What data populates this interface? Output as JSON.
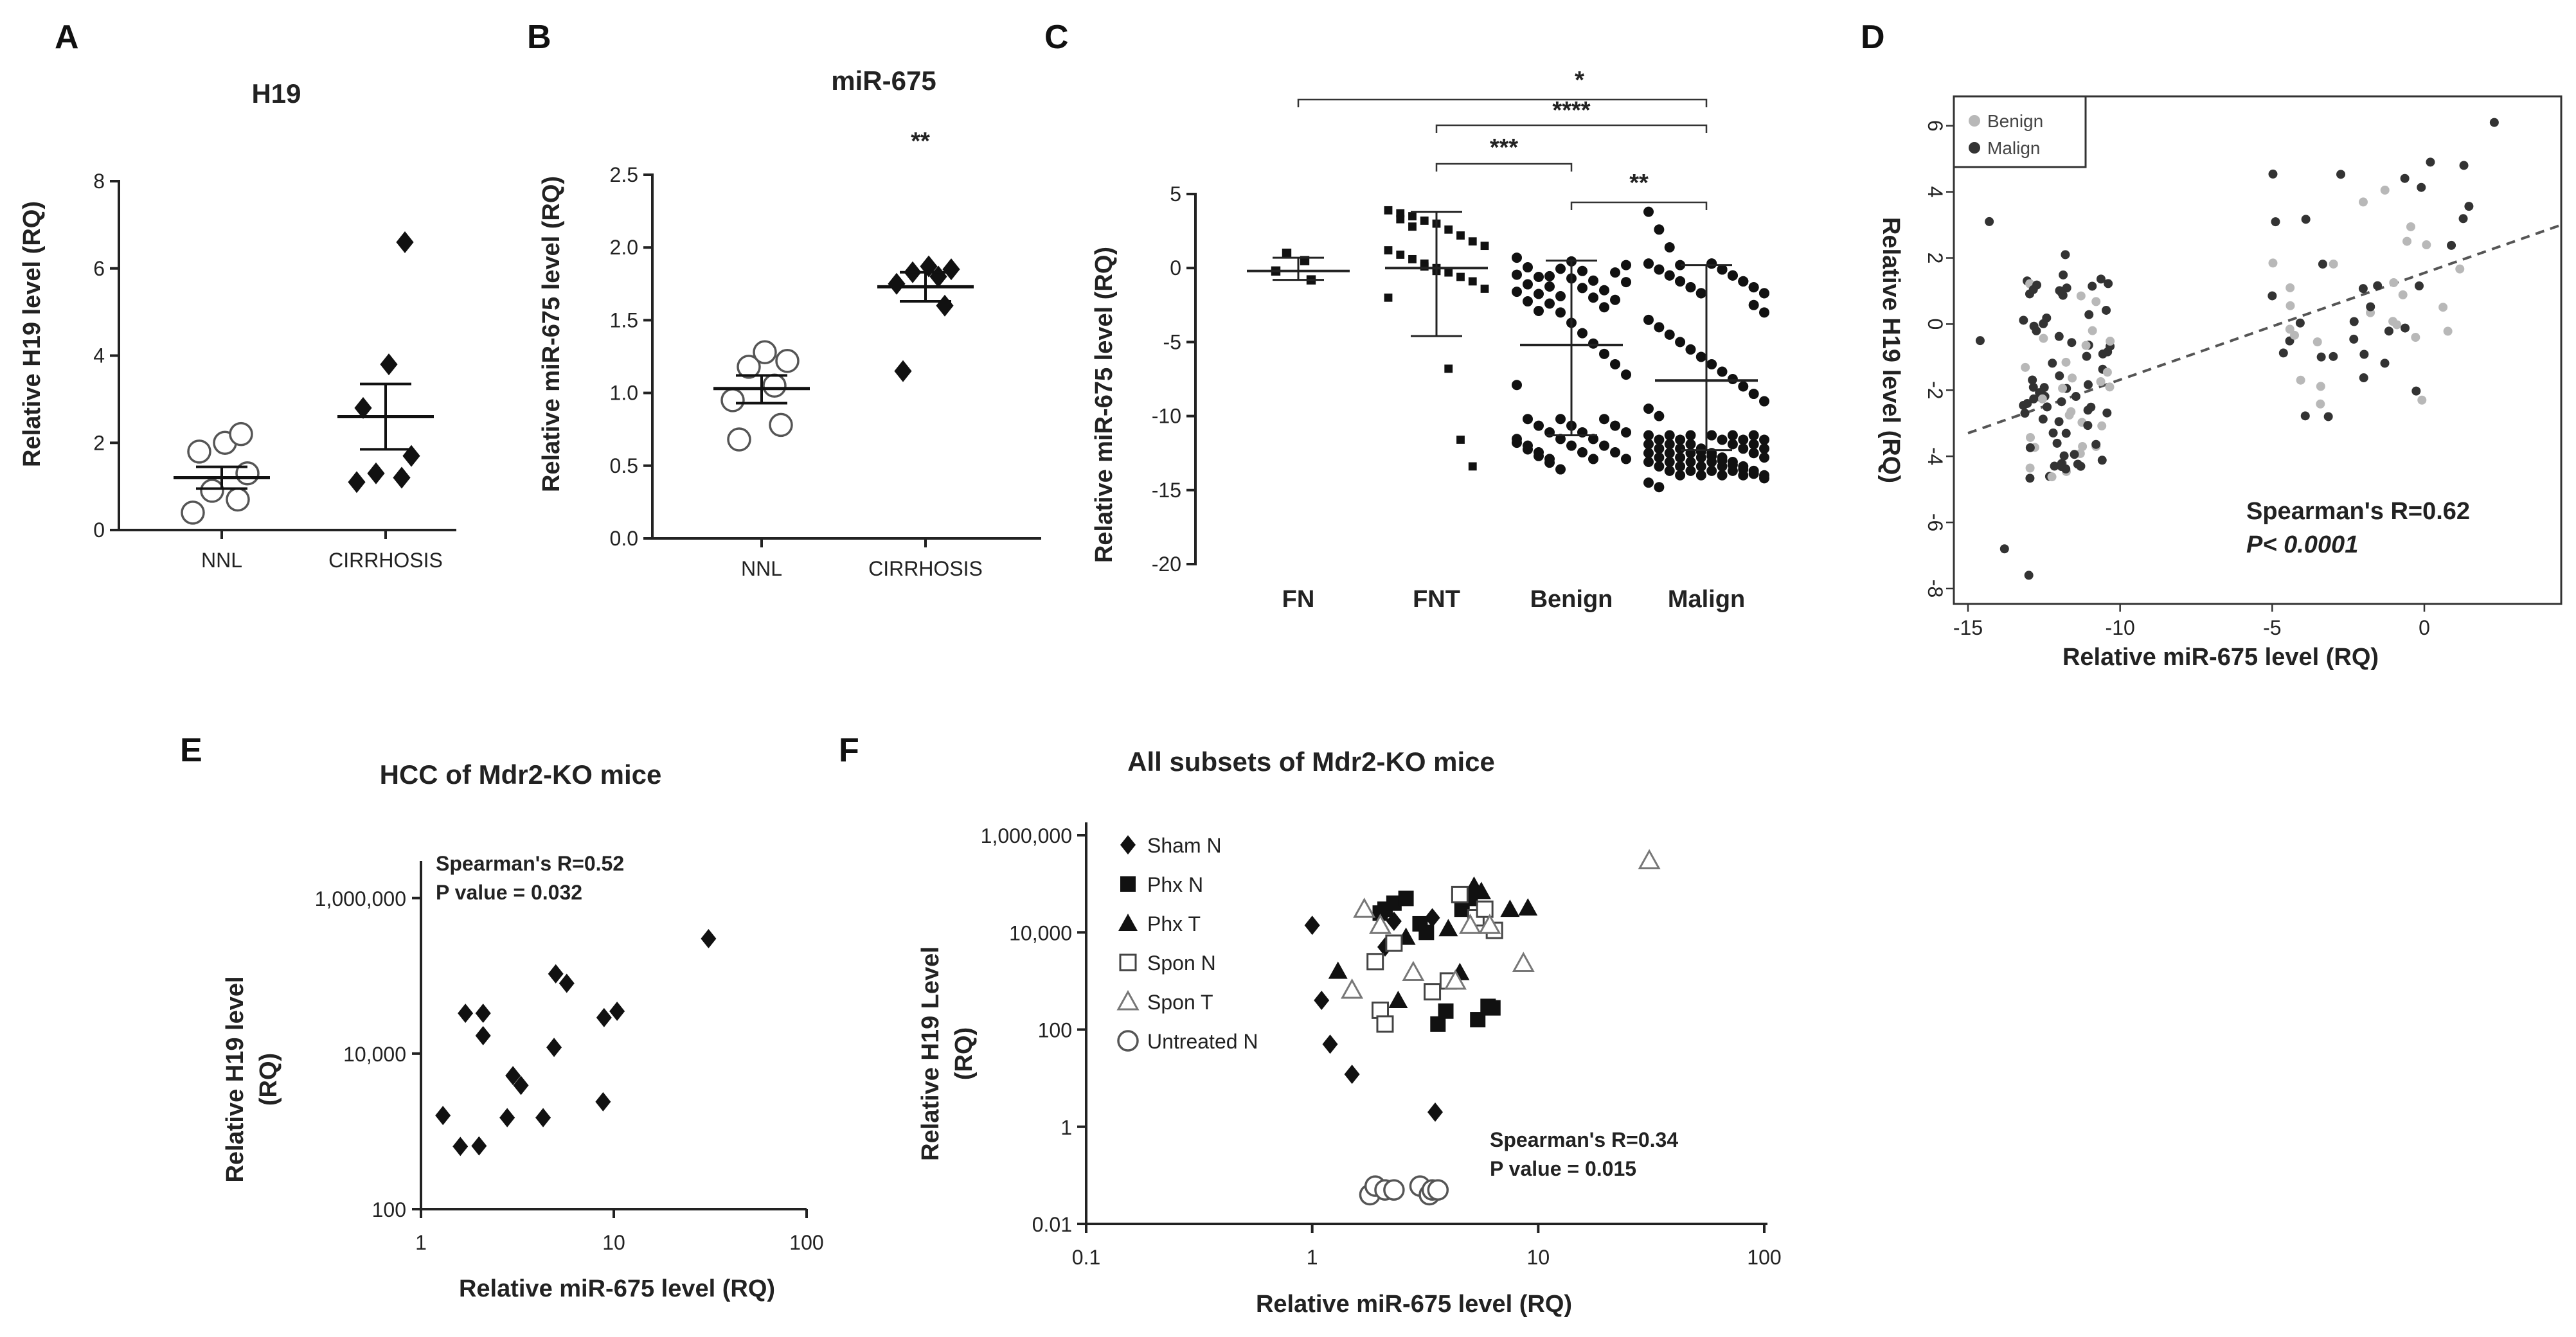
{
  "panels": {
    "A": "A",
    "B": "B",
    "C": "C",
    "D": "D",
    "E": "E",
    "F": "F"
  },
  "chart_data": [
    {
      "panel": "A",
      "type": "scatter",
      "title": "H19",
      "ylabel": "Relative H19 level (RQ)",
      "xlabel": "",
      "ylim": [
        0,
        8
      ],
      "yticks": [
        "0",
        "2",
        "4",
        "6",
        "8"
      ],
      "categories": [
        "NNL",
        "CIRRHOSIS"
      ],
      "groups": [
        {
          "name": "NNL",
          "marker": "open-circle",
          "values": [
            0.4,
            0.7,
            0.9,
            1.3,
            1.8,
            2.0,
            2.2
          ],
          "mean": 1.2,
          "sem_low": 0.95,
          "sem_high": 1.45
        },
        {
          "name": "CIRRHOSIS",
          "marker": "diamond",
          "values": [
            1.1,
            1.2,
            1.3,
            1.7,
            2.8,
            3.8,
            6.6
          ],
          "mean": 2.6,
          "sem_low": 1.85,
          "sem_high": 3.35
        }
      ]
    },
    {
      "panel": "B",
      "type": "scatter",
      "title": "miR-675",
      "ylabel": "Relative miR-675 level (RQ)",
      "xlabel": "",
      "ylim": [
        0,
        2.5
      ],
      "yticks": [
        "0.0",
        "0.5",
        "1.0",
        "1.5",
        "2.0",
        "2.5"
      ],
      "categories": [
        "NNL",
        "CIRRHOSIS"
      ],
      "annotation": "**",
      "groups": [
        {
          "name": "NNL",
          "marker": "open-circle",
          "values": [
            0.68,
            0.78,
            0.95,
            1.05,
            1.18,
            1.22,
            1.28
          ],
          "mean": 1.03,
          "sem_low": 0.93,
          "sem_high": 1.12
        },
        {
          "name": "CIRRHOSIS",
          "marker": "diamond",
          "values": [
            1.15,
            1.6,
            1.75,
            1.8,
            1.83,
            1.85,
            1.87
          ],
          "mean": 1.73,
          "sem_low": 1.63,
          "sem_high": 1.83
        }
      ]
    },
    {
      "panel": "C",
      "type": "scatter",
      "title": "",
      "ylabel": "Relative miR-675 level (RQ)",
      "xlabel": "",
      "ylim": [
        -20,
        5
      ],
      "yticks": [
        "5",
        "0",
        "-5",
        "-10",
        "-15",
        "-20"
      ],
      "categories": [
        "FN",
        "FNT",
        "Benign",
        "Malign"
      ],
      "groups": [
        {
          "name": "FN",
          "n": 4,
          "mean": -0.2,
          "low": -0.8,
          "high": 0.7
        },
        {
          "name": "FNT",
          "n": 26,
          "mean": 0.0,
          "low": -4.6,
          "high": 3.8
        },
        {
          "name": "Benign",
          "n": 60,
          "mean": -5.2,
          "low": -11.3,
          "high": 0.5
        },
        {
          "name": "Malign",
          "n": 110,
          "mean": -7.6,
          "low": -12.3,
          "high": 0.2
        }
      ],
      "significance": [
        {
          "from": "FN",
          "to": "Malign",
          "label": "*"
        },
        {
          "from": "FNT",
          "to": "Malign",
          "label": "****"
        },
        {
          "from": "FNT",
          "to": "Benign",
          "label": "***"
        },
        {
          "from": "Benign",
          "to": "Malign",
          "label": "**"
        }
      ]
    },
    {
      "panel": "D",
      "type": "scatter",
      "title": "",
      "xlabel": "Relative miR-675 level (RQ)",
      "ylabel": "Relative H19 level (RQ)",
      "xlim": [
        -15,
        4.5
      ],
      "ylim": [
        -8,
        6.5
      ],
      "xticks": [
        "-15",
        "-10",
        "-5",
        "0"
      ],
      "yticks": [
        "-8",
        "-6",
        "-4",
        "-2",
        "0",
        "2",
        "4",
        "6"
      ],
      "legend": [
        "Benign",
        "Malign"
      ],
      "stat_line1": "Spearman's R=0.62",
      "stat_line2": "P< 0.0001",
      "fit": {
        "x0": -15,
        "y0": -3.3,
        "x1": 4.5,
        "y1": 3.0
      }
    },
    {
      "panel": "E",
      "type": "scatter",
      "title": "HCC of Mdr2-KO mice",
      "xlabel": "Relative miR-675 level (RQ)",
      "ylabel_1": "Relative  H19 level",
      "ylabel_2": "(RQ)",
      "xscale": "log",
      "yscale": "log",
      "xlim": [
        1,
        100
      ],
      "ylim": [
        100,
        3000000
      ],
      "xticks": [
        "1",
        "10",
        "100"
      ],
      "yticks": [
        "100",
        "10,000",
        "1,000,000"
      ],
      "stat_line1": "Spearman's R=0.52",
      "stat_line2": "P value = 0.032",
      "x": [
        1.3,
        1.6,
        1.7,
        2.0,
        2.1,
        2.1,
        2.8,
        3.0,
        3.3,
        4.3,
        4.9,
        5.0,
        5.7,
        8.8,
        8.9,
        10.4,
        31.0
      ],
      "y": [
        1600,
        640,
        33000,
        650,
        33000,
        17000,
        1500,
        5200,
        3900,
        1500,
        12000,
        106000,
        80000,
        2400,
        29000,
        35000,
        300000
      ]
    },
    {
      "panel": "F",
      "type": "scatter",
      "title": "All subsets of Mdr2-KO mice",
      "xlabel": "Relative miR-675 level (RQ)",
      "ylabel_1": "Relative H19 Level",
      "ylabel_2": "(RQ)",
      "xscale": "log",
      "yscale": "log",
      "xlim": [
        0.1,
        100
      ],
      "ylim": [
        0.01,
        1000000
      ],
      "xticks": [
        "0.1",
        "1",
        "10",
        "100"
      ],
      "yticks": [
        "0.01",
        "1",
        "100",
        "10,000",
        "1,000,000"
      ],
      "stat_line1": "Spearman's R=0.34",
      "stat_line2": "P value = 0.015",
      "series": [
        {
          "name": "Sham N",
          "marker": "diamond",
          "x": [
            1.0,
            1.1,
            1.2,
            1.5,
            2.1,
            2.3,
            3.4,
            3.5
          ],
          "y": [
            14000,
            400,
            50,
            12,
            5000,
            17000,
            20000,
            2
          ]
        },
        {
          "name": "Phx N",
          "marker": "square",
          "x": [
            2.0,
            2.1,
            2.3,
            2.6,
            3.0,
            3.2,
            3.6,
            3.9,
            4.6,
            5.0,
            5.4,
            6.0,
            6.3
          ],
          "y": [
            25000,
            30000,
            40000,
            50000,
            15000,
            10000,
            130,
            240,
            30000,
            50000,
            160,
            300,
            280
          ]
        },
        {
          "name": "Phx T",
          "marker": "triangle",
          "x": [
            1.3,
            2.4,
            2.6,
            4.0,
            4.5,
            5.2,
            5.6,
            7.5,
            9.0
          ],
          "y": [
            1600,
            400,
            8000,
            12000,
            1500,
            90000,
            70000,
            30000,
            32000
          ]
        },
        {
          "name": "Spon N",
          "marker": "open-square",
          "x": [
            1.9,
            2.0,
            2.1,
            2.3,
            3.4,
            4.0,
            4.5,
            5.3,
            5.8,
            6.4
          ],
          "y": [
            2500,
            250,
            130,
            6000,
            600,
            1000,
            60000,
            20000,
            30000,
            11000
          ]
        },
        {
          "name": "Spon T",
          "marker": "open-triangle",
          "x": [
            1.5,
            1.7,
            2.0,
            2.8,
            4.3,
            5.0,
            6.1,
            8.6,
            31.0
          ],
          "y": [
            650,
            30000,
            14000,
            1500,
            1000,
            14000,
            14000,
            2300,
            300000
          ]
        },
        {
          "name": "Untreated N",
          "marker": "open-circle",
          "x": [
            1.8,
            1.9,
            2.1,
            2.3,
            3.0,
            3.3,
            3.4,
            3.6
          ],
          "y": [
            0.04,
            0.06,
            0.05,
            0.05,
            0.06,
            0.04,
            0.05,
            0.05
          ]
        }
      ]
    }
  ]
}
